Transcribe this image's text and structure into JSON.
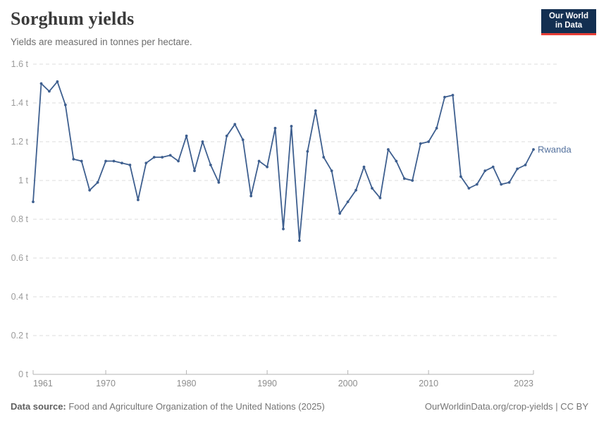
{
  "header": {
    "title": "Sorghum yields",
    "subtitle": "Yields are measured in tonnes per hectare.",
    "logo_line1": "Our World",
    "logo_line2": "in Data"
  },
  "footer": {
    "source_label": "Data source:",
    "source_text": " Food and Agriculture Organization of the United Nations (2025)",
    "credit": "OurWorldinData.org/crop-yields | CC BY"
  },
  "colors": {
    "line": "#3e5f8f",
    "marker": "#3e5f8f",
    "entity_label": "#54719d",
    "grid": "#dedede",
    "axis": "#b3b3b3",
    "tick_label": "#8d8d8d",
    "y_label": "#9c9c9c",
    "logo_bg": "#132f51",
    "logo_red": "#e63e36"
  },
  "chart_data": {
    "type": "line",
    "title": "Sorghum yields",
    "subtitle": "Yields are measured in tonnes per hectare.",
    "unit": "tonnes per hectare",
    "grid": "horizontal dashed",
    "legend_position": "end-of-line label",
    "xlim": [
      1961,
      2023
    ],
    "ylim": [
      0,
      1.6
    ],
    "xticks": [
      1961,
      1970,
      1980,
      1990,
      2000,
      2010,
      2023
    ],
    "yticks": [
      {
        "value": 0,
        "label": "0 t"
      },
      {
        "value": 0.2,
        "label": "0.2 t"
      },
      {
        "value": 0.4,
        "label": "0.4 t"
      },
      {
        "value": 0.6,
        "label": "0.6 t"
      },
      {
        "value": 0.8,
        "label": "0.8 t"
      },
      {
        "value": 1,
        "label": "1 t"
      },
      {
        "value": 1.2,
        "label": "1.2 t"
      },
      {
        "value": 1.4,
        "label": "1.4 t"
      },
      {
        "value": 1.6,
        "label": "1.6 t"
      }
    ],
    "x": [
      1961,
      1962,
      1963,
      1964,
      1965,
      1966,
      1967,
      1968,
      1969,
      1970,
      1971,
      1972,
      1973,
      1974,
      1975,
      1976,
      1977,
      1978,
      1979,
      1980,
      1981,
      1982,
      1983,
      1984,
      1985,
      1986,
      1987,
      1988,
      1989,
      1990,
      1991,
      1992,
      1993,
      1994,
      1995,
      1996,
      1997,
      1998,
      1999,
      2000,
      2001,
      2002,
      2003,
      2004,
      2005,
      2006,
      2007,
      2008,
      2009,
      2010,
      2011,
      2012,
      2013,
      2014,
      2015,
      2016,
      2017,
      2018,
      2019,
      2020,
      2021,
      2022,
      2023
    ],
    "series": [
      {
        "name": "Rwanda",
        "values": [
          0.89,
          1.5,
          1.46,
          1.51,
          1.39,
          1.11,
          1.1,
          0.95,
          0.99,
          1.1,
          1.1,
          1.09,
          1.08,
          0.9,
          1.09,
          1.12,
          1.12,
          1.13,
          1.1,
          1.23,
          1.05,
          1.2,
          1.08,
          0.99,
          1.23,
          1.29,
          1.21,
          0.92,
          1.1,
          1.07,
          1.27,
          0.75,
          1.28,
          0.69,
          1.15,
          1.36,
          1.12,
          1.05,
          0.83,
          0.89,
          0.95,
          1.07,
          0.96,
          0.91,
          1.16,
          1.1,
          1.01,
          1.0,
          1.19,
          1.2,
          1.27,
          1.43,
          1.44,
          1.02,
          0.96,
          0.98,
          1.05,
          1.07,
          0.98,
          0.99,
          1.06,
          1.08,
          1.16
        ]
      }
    ]
  }
}
